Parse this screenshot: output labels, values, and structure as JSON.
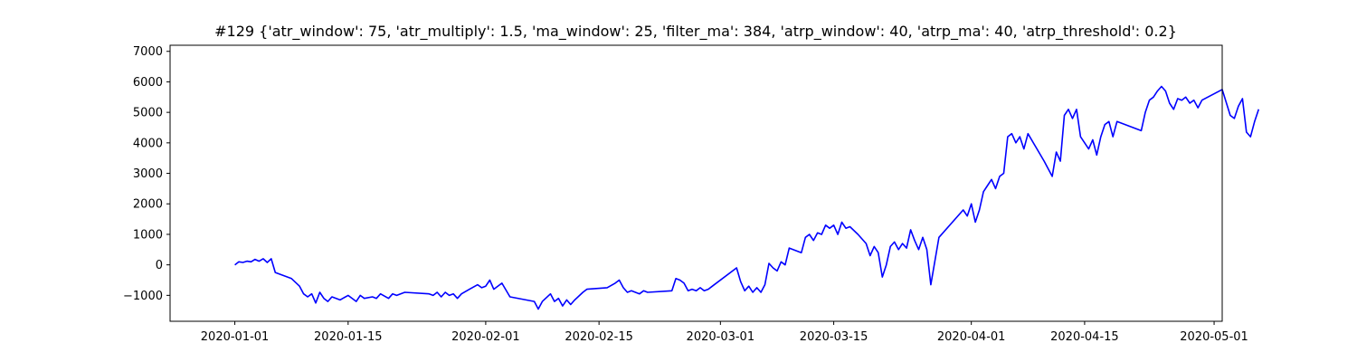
{
  "chart_data": {
    "type": "line",
    "title": "#129 {'atr_window': 75, 'atr_multiply': 1.5, 'ma_window': 25, 'filter_ma': 384, 'atrp_window': 40, 'atrp_ma': 40, 'atrp_threshold': 0.2}",
    "xlabel": "",
    "ylabel": "",
    "x_type": "date",
    "xlim": [
      "2019-12-24",
      "2020-05-02"
    ],
    "ylim": [
      -1850,
      7200
    ],
    "grid": false,
    "x_ticks": [
      "2020-01-01",
      "2020-01-15",
      "2020-02-01",
      "2020-02-15",
      "2020-03-01",
      "2020-03-15",
      "2020-04-01",
      "2020-04-15",
      "2020-05-01"
    ],
    "y_ticks": [
      -1000,
      0,
      1000,
      2000,
      3000,
      4000,
      5000,
      6000,
      7000
    ],
    "series": [
      {
        "color": "#0000ff",
        "points": [
          [
            "2020-01-01",
            0
          ],
          [
            "2020-01-01T12:00",
            100
          ],
          [
            "2020-01-02",
            80
          ],
          [
            "2020-01-02T12:00",
            120
          ],
          [
            "2020-01-03",
            100
          ],
          [
            "2020-01-03T12:00",
            180
          ],
          [
            "2020-01-04",
            120
          ],
          [
            "2020-01-04T12:00",
            200
          ],
          [
            "2020-01-05",
            80
          ],
          [
            "2020-01-05T12:00",
            200
          ],
          [
            "2020-01-06",
            -250
          ],
          [
            "2020-01-08",
            -450
          ],
          [
            "2020-01-09",
            -700
          ],
          [
            "2020-01-09T12:00",
            -950
          ],
          [
            "2020-01-10",
            -1050
          ],
          [
            "2020-01-10T12:00",
            -950
          ],
          [
            "2020-01-11",
            -1250
          ],
          [
            "2020-01-11T12:00",
            -900
          ],
          [
            "2020-01-12",
            -1100
          ],
          [
            "2020-01-12T12:00",
            -1200
          ],
          [
            "2020-01-13",
            -1050
          ],
          [
            "2020-01-14",
            -1150
          ],
          [
            "2020-01-15",
            -1000
          ],
          [
            "2020-01-16",
            -1200
          ],
          [
            "2020-01-16T12:00",
            -1000
          ],
          [
            "2020-01-17",
            -1100
          ],
          [
            "2020-01-18",
            -1050
          ],
          [
            "2020-01-18T12:00",
            -1100
          ],
          [
            "2020-01-19",
            -950
          ],
          [
            "2020-01-20",
            -1100
          ],
          [
            "2020-01-20T12:00",
            -950
          ],
          [
            "2020-01-21",
            -1000
          ],
          [
            "2020-01-22",
            -900
          ],
          [
            "2020-01-25",
            -950
          ],
          [
            "2020-01-25T12:00",
            -1000
          ],
          [
            "2020-01-26",
            -900
          ],
          [
            "2020-01-26T12:00",
            -1050
          ],
          [
            "2020-01-27",
            -900
          ],
          [
            "2020-01-27T12:00",
            -1000
          ],
          [
            "2020-01-28",
            -950
          ],
          [
            "2020-01-28T12:00",
            -1100
          ],
          [
            "2020-01-29",
            -950
          ],
          [
            "2020-01-30",
            -800
          ],
          [
            "2020-01-31",
            -650
          ],
          [
            "2020-01-31T12:00",
            -750
          ],
          [
            "2020-02-01",
            -700
          ],
          [
            "2020-02-01T12:00",
            -500
          ],
          [
            "2020-02-02",
            -800
          ],
          [
            "2020-02-03",
            -600
          ],
          [
            "2020-02-04",
            -1050
          ],
          [
            "2020-02-07",
            -1200
          ],
          [
            "2020-02-07T12:00",
            -1450
          ],
          [
            "2020-02-08",
            -1200
          ],
          [
            "2020-02-09",
            -950
          ],
          [
            "2020-02-09T12:00",
            -1200
          ],
          [
            "2020-02-10",
            -1100
          ],
          [
            "2020-02-10T12:00",
            -1350
          ],
          [
            "2020-02-11",
            -1150
          ],
          [
            "2020-02-11T12:00",
            -1300
          ],
          [
            "2020-02-12",
            -1150
          ],
          [
            "2020-02-13",
            -900
          ],
          [
            "2020-02-13T12:00",
            -800
          ],
          [
            "2020-02-16",
            -750
          ],
          [
            "2020-02-17",
            -600
          ],
          [
            "2020-02-17T12:00",
            -500
          ],
          [
            "2020-02-18",
            -750
          ],
          [
            "2020-02-18T12:00",
            -900
          ],
          [
            "2020-02-19",
            -850
          ],
          [
            "2020-02-20",
            -950
          ],
          [
            "2020-02-20T12:00",
            -850
          ],
          [
            "2020-02-21",
            -900
          ],
          [
            "2020-02-24",
            -850
          ],
          [
            "2020-02-24T12:00",
            -450
          ],
          [
            "2020-02-25",
            -500
          ],
          [
            "2020-02-25T12:00",
            -600
          ],
          [
            "2020-02-26",
            -850
          ],
          [
            "2020-02-26T12:00",
            -800
          ],
          [
            "2020-02-27",
            -850
          ],
          [
            "2020-02-27T12:00",
            -750
          ],
          [
            "2020-02-28",
            -850
          ],
          [
            "2020-02-28T12:00",
            -800
          ],
          [
            "2020-02-29",
            -700
          ],
          [
            "2020-03-03",
            -100
          ],
          [
            "2020-03-03T12:00",
            -550
          ],
          [
            "2020-03-04",
            -850
          ],
          [
            "2020-03-04T12:00",
            -700
          ],
          [
            "2020-03-05",
            -900
          ],
          [
            "2020-03-05T12:00",
            -750
          ],
          [
            "2020-03-06",
            -900
          ],
          [
            "2020-03-06T12:00",
            -650
          ],
          [
            "2020-03-07",
            50
          ],
          [
            "2020-03-07T12:00",
            -100
          ],
          [
            "2020-03-08",
            -200
          ],
          [
            "2020-03-08T12:00",
            100
          ],
          [
            "2020-03-09",
            0
          ],
          [
            "2020-03-09T12:00",
            550
          ],
          [
            "2020-03-11",
            400
          ],
          [
            "2020-03-11T12:00",
            900
          ],
          [
            "2020-03-12",
            1000
          ],
          [
            "2020-03-12T12:00",
            800
          ],
          [
            "2020-03-13",
            1050
          ],
          [
            "2020-03-13T12:00",
            1000
          ],
          [
            "2020-03-14",
            1300
          ],
          [
            "2020-03-14T12:00",
            1200
          ],
          [
            "2020-03-15",
            1300
          ],
          [
            "2020-03-15T12:00",
            1000
          ],
          [
            "2020-03-16",
            1400
          ],
          [
            "2020-03-16T12:00",
            1200
          ],
          [
            "2020-03-17",
            1250
          ],
          [
            "2020-03-18",
            1000
          ],
          [
            "2020-03-19",
            700
          ],
          [
            "2020-03-19T12:00",
            300
          ],
          [
            "2020-03-20",
            600
          ],
          [
            "2020-03-20T12:00",
            400
          ],
          [
            "2020-03-21",
            -400
          ],
          [
            "2020-03-21T12:00",
            0
          ],
          [
            "2020-03-22",
            600
          ],
          [
            "2020-03-22T12:00",
            750
          ],
          [
            "2020-03-23",
            500
          ],
          [
            "2020-03-23T12:00",
            700
          ],
          [
            "2020-03-24",
            550
          ],
          [
            "2020-03-24T12:00",
            1150
          ],
          [
            "2020-03-25",
            800
          ],
          [
            "2020-03-25T12:00",
            500
          ],
          [
            "2020-03-26",
            900
          ],
          [
            "2020-03-26T12:00",
            500
          ],
          [
            "2020-03-27",
            -650
          ],
          [
            "2020-03-28",
            900
          ],
          [
            "2020-03-31",
            1800
          ],
          [
            "2020-03-31T12:00",
            1600
          ],
          [
            "2020-04-01",
            2000
          ],
          [
            "2020-04-01T12:00",
            1400
          ],
          [
            "2020-04-02",
            1800
          ],
          [
            "2020-04-02T12:00",
            2400
          ],
          [
            "2020-04-03",
            2600
          ],
          [
            "2020-04-03T12:00",
            2800
          ],
          [
            "2020-04-04",
            2500
          ],
          [
            "2020-04-04T12:00",
            2900
          ],
          [
            "2020-04-05",
            3000
          ],
          [
            "2020-04-05T12:00",
            4200
          ],
          [
            "2020-04-06",
            4300
          ],
          [
            "2020-04-06T12:00",
            4000
          ],
          [
            "2020-04-07",
            4200
          ],
          [
            "2020-04-07T12:00",
            3800
          ],
          [
            "2020-04-08",
            4300
          ],
          [
            "2020-04-10",
            3400
          ],
          [
            "2020-04-11",
            2900
          ],
          [
            "2020-04-11T12:00",
            3700
          ],
          [
            "2020-04-12",
            3400
          ],
          [
            "2020-04-12T12:00",
            4900
          ],
          [
            "2020-04-13",
            5100
          ],
          [
            "2020-04-13T12:00",
            4800
          ],
          [
            "2020-04-14",
            5100
          ],
          [
            "2020-04-14T12:00",
            4200
          ],
          [
            "2020-04-15",
            4000
          ],
          [
            "2020-04-15T12:00",
            3800
          ],
          [
            "2020-04-16",
            4100
          ],
          [
            "2020-04-16T12:00",
            3600
          ],
          [
            "2020-04-17",
            4200
          ],
          [
            "2020-04-17T12:00",
            4600
          ],
          [
            "2020-04-18",
            4700
          ],
          [
            "2020-04-18T12:00",
            4200
          ],
          [
            "2020-04-19",
            4700
          ],
          [
            "2020-04-22",
            4400
          ],
          [
            "2020-04-22T12:00",
            5000
          ],
          [
            "2020-04-23",
            5400
          ],
          [
            "2020-04-23T12:00",
            5500
          ],
          [
            "2020-04-24",
            5700
          ],
          [
            "2020-04-24T12:00",
            5850
          ],
          [
            "2020-04-25",
            5700
          ],
          [
            "2020-04-25T12:00",
            5300
          ],
          [
            "2020-04-26",
            5100
          ],
          [
            "2020-04-26T12:00",
            5450
          ],
          [
            "2020-04-27",
            5400
          ],
          [
            "2020-04-27T12:00",
            5500
          ],
          [
            "2020-04-28",
            5300
          ],
          [
            "2020-04-28T12:00",
            5400
          ],
          [
            "2020-04-29",
            5150
          ],
          [
            "2020-04-29T12:00",
            5400
          ],
          [
            "2020-05-02",
            5750
          ],
          [
            "2020-05-03",
            4900
          ],
          [
            "2020-05-03T12:00",
            4800
          ],
          [
            "2020-05-04",
            5200
          ],
          [
            "2020-05-04T12:00",
            5450
          ],
          [
            "2020-05-05",
            4350
          ],
          [
            "2020-05-05T12:00",
            4200
          ],
          [
            "2020-05-06",
            4700
          ],
          [
            "2020-05-06T12:00",
            5100
          ]
        ]
      }
    ]
  }
}
